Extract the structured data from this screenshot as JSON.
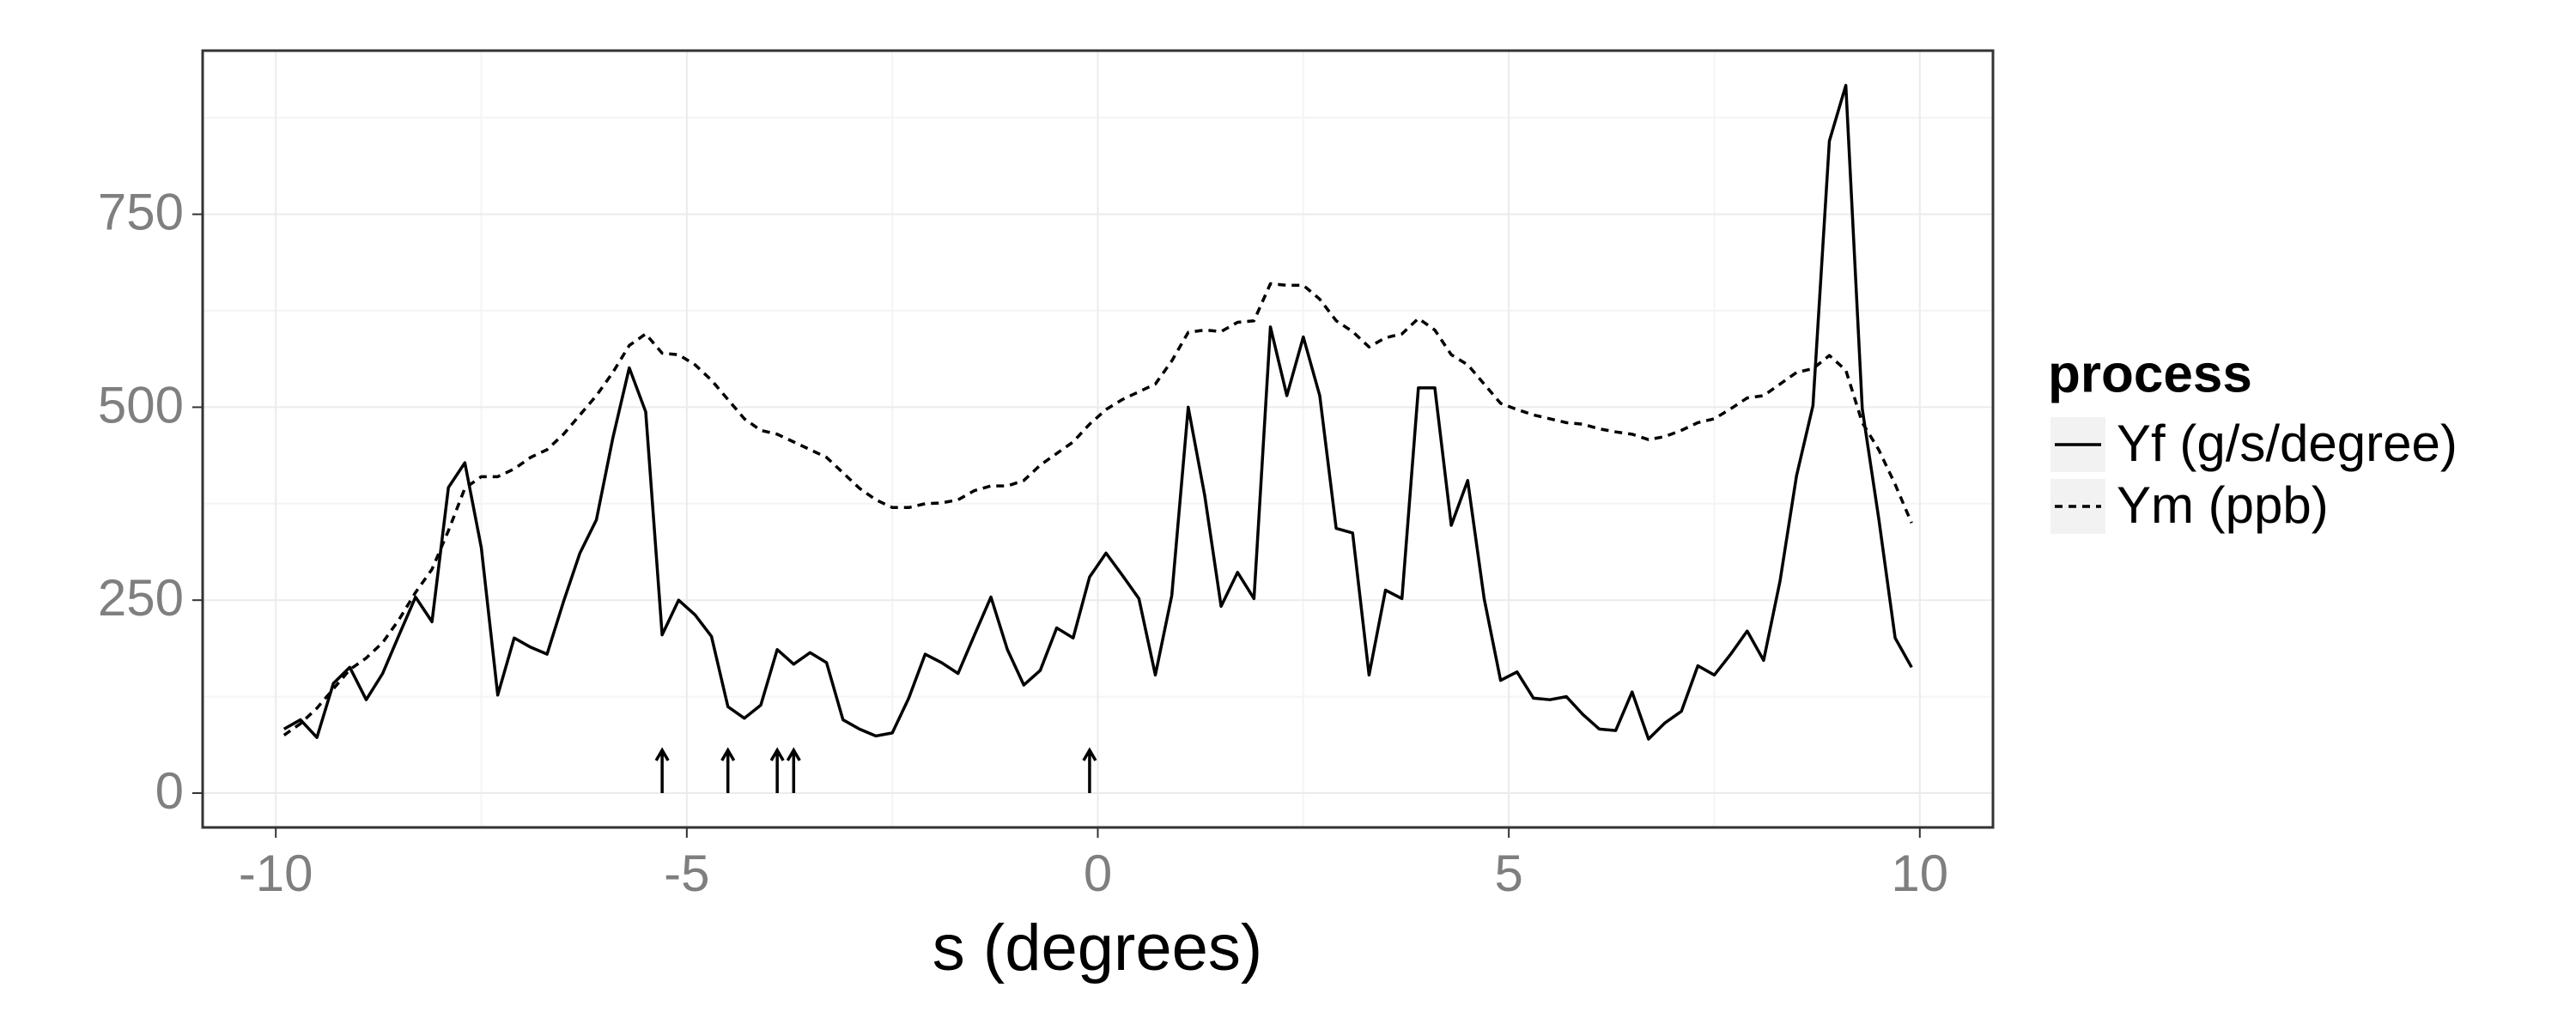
{
  "chart_data": {
    "type": "line",
    "xlabel": "s (degrees)",
    "legend_title": "process",
    "legend": "right",
    "grid": true,
    "xlim": [
      -10.89,
      10.89
    ],
    "ylim": [
      -44.5,
      962
    ],
    "xticks": [
      -10,
      -5,
      0,
      5,
      10
    ],
    "yticks": [
      0,
      250,
      500,
      750
    ],
    "minor_xticks": [
      -7.5,
      -2.5,
      2.5,
      7.5
    ],
    "minor_yticks": [
      125,
      375,
      625,
      875
    ],
    "arrows": [
      -5.3,
      -4.5,
      -3.9,
      -3.7,
      -0.1
    ],
    "x": [
      -9.9,
      -9.7,
      -9.5,
      -9.3,
      -9.1,
      -8.9,
      -8.7,
      -8.5,
      -8.3,
      -8.1,
      -7.9,
      -7.7,
      -7.5,
      -7.3,
      -7.1,
      -6.9,
      -6.7,
      -6.5,
      -6.3,
      -6.1,
      -5.9,
      -5.7,
      -5.5,
      -5.3,
      -5.1,
      -4.9,
      -4.7,
      -4.5,
      -4.3,
      -4.1,
      -3.9,
      -3.7,
      -3.5,
      -3.3,
      -3.1,
      -2.9,
      -2.7,
      -2.5,
      -2.3,
      -2.1,
      -1.9,
      -1.7,
      -1.5,
      -1.3,
      -1.1,
      -0.9,
      -0.7,
      -0.5,
      -0.3,
      -0.1,
      0.1,
      0.3,
      0.5,
      0.7,
      0.9,
      1.1,
      1.3,
      1.5,
      1.7,
      1.9,
      2.1,
      2.3,
      2.5,
      2.7,
      2.9,
      3.1,
      3.3,
      3.5,
      3.7,
      3.9,
      4.1,
      4.3,
      4.5,
      4.7,
      4.9,
      5.1,
      5.3,
      5.5,
      5.7,
      5.9,
      6.1,
      6.3,
      6.5,
      6.7,
      6.9,
      7.1,
      7.3,
      7.5,
      7.7,
      7.9,
      8.1,
      8.3,
      8.5,
      8.7,
      8.9,
      9.1,
      9.3,
      9.5,
      9.7,
      9.9
    ],
    "series": [
      {
        "name": "Yf (g/s/degree)",
        "color": "#000000",
        "linestyle": "solid",
        "values": [
          83,
          95,
          72,
          142,
          163,
          121,
          155,
          205,
          254,
          222,
          396,
          428,
          318,
          127,
          201,
          189,
          180,
          248,
          311,
          354,
          460,
          551,
          494,
          205,
          250,
          231,
          203,
          112,
          97,
          114,
          186,
          167,
          182,
          169,
          95,
          83,
          74,
          78,
          123,
          180,
          169,
          155,
          205,
          254,
          186,
          140,
          159,
          214,
          201,
          280,
          311,
          282,
          252,
          153,
          256,
          500,
          386,
          242,
          286,
          252,
          604,
          515,
          591,
          515,
          343,
          337,
          153,
          263,
          252,
          525,
          525,
          347,
          405,
          252,
          146,
          157,
          123,
          121,
          125,
          102,
          83,
          81,
          131,
          70,
          91,
          106,
          165,
          153,
          180,
          210,
          172,
          275,
          411,
          502,
          845,
          917,
          498,
          356,
          201,
          163
        ]
      },
      {
        "name": "Ym (ppb)",
        "color": "#000000",
        "linestyle": "dashed",
        "values": [
          75,
          90,
          110,
          135,
          160,
          175,
          195,
          225,
          260,
          290,
          340,
          395,
          410,
          410,
          420,
          435,
          445,
          465,
          490,
          515,
          545,
          580,
          595,
          570,
          568,
          555,
          535,
          510,
          485,
          470,
          465,
          455,
          445,
          435,
          415,
          395,
          380,
          370,
          370,
          375,
          376,
          380,
          392,
          398,
          398,
          405,
          425,
          440,
          455,
          478,
          497,
          510,
          520,
          530,
          560,
          597,
          600,
          598,
          610,
          612,
          660,
          658,
          658,
          640,
          612,
          598,
          578,
          590,
          595,
          615,
          600,
          568,
          555,
          530,
          505,
          497,
          490,
          485,
          480,
          478,
          472,
          468,
          465,
          458,
          462,
          470,
          480,
          485,
          498,
          512,
          515,
          530,
          545,
          550,
          567,
          548,
          480,
          445,
          400,
          350
        ]
      }
    ]
  }
}
